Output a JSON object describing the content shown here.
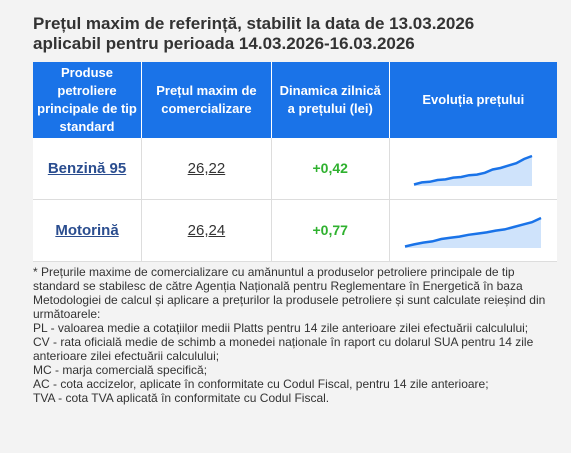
{
  "header": {
    "title_line1": "Prețul maxim de referință, stabilit la data de 13.03.2026",
    "title_line2": "aplicabil pentru perioada 14.03.2026-16.03.2026"
  },
  "table": {
    "columns": [
      "Produse petroliere principale de tip standard",
      "Prețul maxim de comercializare",
      "Dinamica zilnică a prețului (lei)",
      "Evoluția prețului"
    ],
    "rows": [
      {
        "product": "Benzină 95",
        "price": "26,22",
        "change": "+0,42",
        "trend": [
          0.05,
          0.12,
          0.14,
          0.2,
          0.22,
          0.28,
          0.3,
          0.36,
          0.38,
          0.44,
          0.55,
          0.6,
          0.68,
          0.76,
          0.9,
          1.0
        ]
      },
      {
        "product": "Motorină",
        "price": "26,24",
        "change": "+0,77",
        "trend": [
          0.05,
          0.12,
          0.18,
          0.22,
          0.3,
          0.34,
          0.38,
          0.44,
          0.48,
          0.52,
          0.58,
          0.62,
          0.7,
          0.78,
          0.86,
          1.0
        ]
      }
    ],
    "accent_color": "#1a73e8",
    "change_color": "#2fb12f"
  },
  "notes": [
    "* Prețurile maxime de comercializare cu amănuntul a produselor petroliere principale de tip standard se stabilesc de către Agenția Națională pentru Reglementare în Energetică în baza Metodologiei de calcul și aplicare a prețurilor la produsele petroliere și sunt calculate reieșind din următoarele:",
    "PL - valoarea medie a cotațiilor medii Platts pentru 14 zile anterioare zilei efectuării calculului;",
    "CV - rata oficială medie de schimb a monedei naționale în raport cu dolarul SUA pentru 14 zile anterioare zilei efectuării calculului;",
    "MC - marja comercială specifică;",
    "AC - cota accizelor, aplicate în conformitate cu Codul Fiscal, pentru 14 zile anterioare;",
    "TVA - cota TVA aplicată în conformitate cu Codul Fiscal."
  ]
}
